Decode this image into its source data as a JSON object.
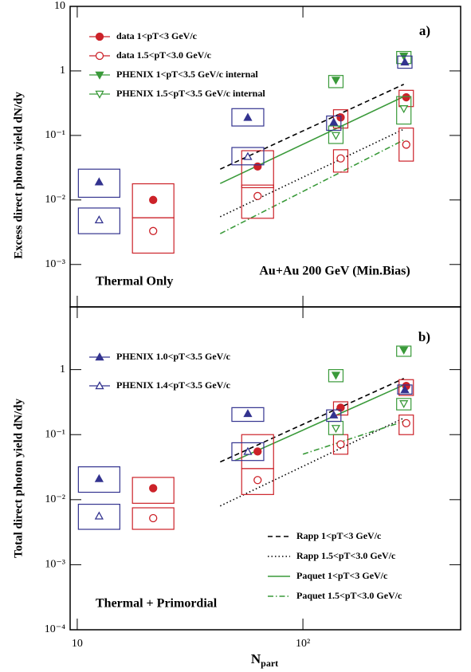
{
  "chart_data": [
    {
      "type": "scatter",
      "log_x": true,
      "log_y": true,
      "y_label": "Excess direct photon yield dN/dy",
      "annotations": [
        "a)",
        "Thermal Only",
        "Au+Au 200 GeV (Min.Bias)"
      ],
      "xlim": [
        9.3,
        500
      ],
      "xticks": [
        {
          "value": 10,
          "label": "10"
        },
        {
          "value": 100,
          "label": "10²"
        }
      ],
      "ylim": [
        0.00022,
        10
      ],
      "yticks": [
        {
          "value": 10,
          "label": "10"
        },
        1,
        {
          "value": 0.1,
          "label": "10⁻¹"
        },
        {
          "value": 0.01,
          "label": "10⁻²"
        },
        {
          "value": 0.001,
          "label": "10⁻³"
        }
      ],
      "legend": "upper left",
      "series": [
        {
          "name": "data 1<pT<3 GeV/c",
          "color": "#cc2229",
          "marker": "circle",
          "filled": true,
          "x": [
            21.7,
            63,
            147,
            287
          ],
          "values": [
            0.01,
            0.033,
            0.19,
            0.39
          ],
          "sys": [
            [
              0.0053,
              0.0178
            ],
            [
              0.0155,
              0.058
            ],
            [
              0.13,
              0.25
            ],
            [
              0.28,
              0.5
            ]
          ]
        },
        {
          "name": "data 1.5<pT<3.0 GeV/c",
          "color": "#cc2229",
          "marker": "circle",
          "filled": false,
          "x": [
            21.7,
            63,
            147,
            287
          ],
          "values": [
            0.0033,
            0.0115,
            0.044,
            0.072
          ],
          "sys": [
            [
              0.0015,
              0.0053
            ],
            [
              0.0052,
              0.017
            ],
            [
              0.027,
              0.06
            ],
            [
              0.04,
              0.13
            ]
          ]
        },
        {
          "name": "PHENIX 1<pT<3.5 GeV/c internal",
          "color": "#3a9a3a",
          "marker": "triangle-down",
          "filled": true,
          "x": [
            140,
            280
          ],
          "values": [
            0.72,
            1.7
          ],
          "sys": [
            [
              0.55,
              0.85
            ],
            [
              1.3,
              2.0
            ]
          ]
        },
        {
          "name": "PHENIX 1.5<pT<3.5 GeV/c internal",
          "color": "#3a9a3a",
          "marker": "triangle-down",
          "filled": false,
          "x": [
            140,
            280
          ],
          "values": [
            0.1,
            0.26
          ],
          "sys": [
            [
              0.075,
              0.14
            ],
            [
              0.15,
              0.4
            ]
          ]
        },
        {
          "color": "#33338f",
          "marker": "triangle-up",
          "filled": true,
          "x": [
            12.5,
            57,
            137,
            283
          ],
          "values": [
            0.019,
            0.19,
            0.16,
            1.37
          ],
          "sys": [
            [
              0.011,
              0.03
            ],
            [
              0.14,
              0.26
            ],
            [
              0.12,
              0.2
            ],
            [
              1.1,
              1.7
            ]
          ]
        },
        {
          "color": "#33338f",
          "marker": "triangle-up",
          "filled": false,
          "x": [
            12.5,
            57
          ],
          "values": [
            0.0049,
            0.047
          ],
          "sys": [
            [
              0.003,
              0.0075
            ],
            [
              0.035,
              0.065
            ]
          ]
        }
      ],
      "lines": [
        {
          "color": "#000000",
          "dash": "6,4",
          "x": [
            43,
            280
          ],
          "values": [
            0.03,
            0.62
          ]
        },
        {
          "color": "#000000",
          "dash": "1.5,3",
          "x": [
            43,
            280
          ],
          "values": [
            0.0055,
            0.125
          ]
        },
        {
          "color": "#3a9a3a",
          "dash": "",
          "x": [
            43,
            280
          ],
          "values": [
            0.018,
            0.4
          ]
        },
        {
          "color": "#3a9a3a",
          "dash": "7,3,1.5,3",
          "x": [
            43,
            280
          ],
          "values": [
            0.003,
            0.085
          ]
        }
      ]
    },
    {
      "type": "scatter",
      "log_x": true,
      "log_y": true,
      "y_label": "Total direct photon yield dN/dy",
      "x_label": {
        "main": "N",
        "sub": "part"
      },
      "annotations": [
        "b)",
        "Thermal + Primordial"
      ],
      "xlim": [
        9.3,
        500
      ],
      "xticks": [
        {
          "value": 10,
          "label": "10"
        },
        {
          "value": 100,
          "label": "10²"
        }
      ],
      "ylim": [
        0.0001,
        9.2
      ],
      "yticks": [
        1,
        {
          "value": 0.1,
          "label": "10⁻¹"
        },
        {
          "value": 0.01,
          "label": "10⁻²"
        },
        {
          "value": 0.001,
          "label": "10⁻³"
        },
        {
          "value": 0.0001,
          "label": "10⁻⁴"
        }
      ],
      "legend": "upper left",
      "line_legend": "lower right",
      "series": [
        {
          "color": "#cc2229",
          "marker": "circle",
          "filled": true,
          "x": [
            21.7,
            63,
            147,
            287
          ],
          "values": [
            0.015,
            0.055,
            0.26,
            0.56
          ],
          "sys": [
            [
              0.0088,
              0.022
            ],
            [
              0.03,
              0.1
            ],
            [
              0.2,
              0.32
            ],
            [
              0.4,
              0.7
            ]
          ]
        },
        {
          "color": "#cc2229",
          "marker": "circle",
          "filled": false,
          "x": [
            21.7,
            63,
            147,
            287
          ],
          "values": [
            0.0052,
            0.02,
            0.071,
            0.15
          ],
          "sys": [
            [
              0.0035,
              0.0075
            ],
            [
              0.012,
              0.03
            ],
            [
              0.05,
              0.1
            ],
            [
              0.1,
              0.2
            ]
          ]
        },
        {
          "color": "#3a9a3a",
          "marker": "triangle-down",
          "filled": true,
          "x": [
            140,
            280
          ],
          "values": [
            0.82,
            2.0
          ],
          "sys": [
            [
              0.65,
              1.0
            ],
            [
              1.6,
              2.3
            ]
          ]
        },
        {
          "color": "#3a9a3a",
          "marker": "triangle-down",
          "filled": false,
          "x": [
            140,
            280
          ],
          "values": [
            0.125,
            0.3
          ],
          "sys": [
            [
              0.1,
              0.16
            ],
            [
              0.24,
              0.36
            ]
          ]
        },
        {
          "name": "PHENIX 1.0<pT<3.5 GeV/c",
          "color": "#33338f",
          "marker": "triangle-up",
          "filled": true,
          "x": [
            12.5,
            57,
            137,
            283
          ],
          "values": [
            0.021,
            0.21,
            0.2,
            0.49
          ],
          "sys": [
            [
              0.013,
              0.032
            ],
            [
              0.16,
              0.26
            ],
            [
              0.16,
              0.24
            ],
            [
              0.42,
              0.58
            ]
          ]
        },
        {
          "name": "PHENIX 1.4<pT<3.5 GeV/c",
          "color": "#33338f",
          "marker": "triangle-up",
          "filled": false,
          "x": [
            12.5,
            57
          ],
          "values": [
            0.0056,
            0.055
          ],
          "sys": [
            [
              0.0035,
              0.0085
            ],
            [
              0.04,
              0.075
            ]
          ]
        }
      ],
      "lines": [
        {
          "name": "Rapp 1<pT<3 GeV/c",
          "color": "#000000",
          "dash": "6,4",
          "x": [
            43,
            280
          ],
          "values": [
            0.038,
            0.73
          ]
        },
        {
          "name": "Rapp 1.5<pT<3.0 GeV/c",
          "color": "#000000",
          "dash": "1.5,3",
          "x": [
            43,
            280
          ],
          "values": [
            0.008,
            0.18
          ]
        },
        {
          "name": "Paquet 1<pT<3 GeV/c",
          "color": "#3a9a3a",
          "dash": "",
          "x": [
            50,
            280
          ],
          "values": [
            0.04,
            0.58
          ]
        },
        {
          "name": "Paquet 1.5<pT<3.0 GeV/c",
          "color": "#3a9a3a",
          "dash": "7,3,1.5,3",
          "x": [
            100,
            280
          ],
          "values": [
            0.05,
            0.16
          ]
        }
      ]
    }
  ]
}
